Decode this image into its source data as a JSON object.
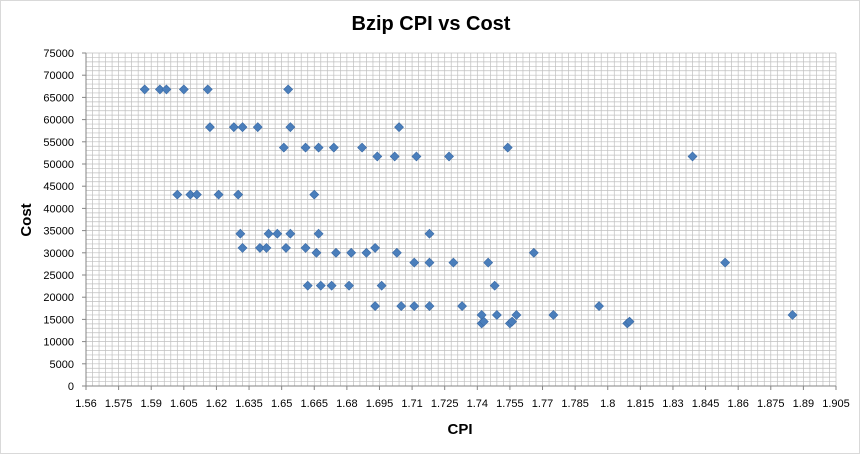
{
  "chart_data": {
    "type": "scatter",
    "title": "Bzip CPI vs Cost",
    "xlabel": "CPI",
    "ylabel": "Cost",
    "xlim": [
      1.56,
      1.905
    ],
    "ylim": [
      0,
      75000
    ],
    "x_ticks": [
      "1.56",
      "1.575",
      "1.59",
      "1.605",
      "1.62",
      "1.635",
      "1.65",
      "1.665",
      "1.68",
      "1.695",
      "1.71",
      "1.725",
      "1.74",
      "1.755",
      "1.77",
      "1.785",
      "1.8",
      "1.815",
      "1.83",
      "1.845",
      "1.86",
      "1.875",
      "1.89",
      "1.905"
    ],
    "y_ticks": [
      "0",
      "5000",
      "10000",
      "15000",
      "20000",
      "25000",
      "30000",
      "35000",
      "40000",
      "45000",
      "50000",
      "55000",
      "60000",
      "65000",
      "70000",
      "75000"
    ],
    "grid": true,
    "marker_color": "#4a7ebb",
    "points": [
      {
        "x": 1.587,
        "y": 66800
      },
      {
        "x": 1.594,
        "y": 66800
      },
      {
        "x": 1.597,
        "y": 66800
      },
      {
        "x": 1.605,
        "y": 66800
      },
      {
        "x": 1.616,
        "y": 66800
      },
      {
        "x": 1.653,
        "y": 66800
      },
      {
        "x": 1.617,
        "y": 58300
      },
      {
        "x": 1.628,
        "y": 58300
      },
      {
        "x": 1.632,
        "y": 58300
      },
      {
        "x": 1.639,
        "y": 58300
      },
      {
        "x": 1.654,
        "y": 58300
      },
      {
        "x": 1.704,
        "y": 58300
      },
      {
        "x": 1.651,
        "y": 53700
      },
      {
        "x": 1.661,
        "y": 53700
      },
      {
        "x": 1.667,
        "y": 53700
      },
      {
        "x": 1.674,
        "y": 53700
      },
      {
        "x": 1.687,
        "y": 53700
      },
      {
        "x": 1.754,
        "y": 53700
      },
      {
        "x": 1.694,
        "y": 51700
      },
      {
        "x": 1.702,
        "y": 51700
      },
      {
        "x": 1.712,
        "y": 51700
      },
      {
        "x": 1.727,
        "y": 51700
      },
      {
        "x": 1.839,
        "y": 51700
      },
      {
        "x": 1.602,
        "y": 43100
      },
      {
        "x": 1.608,
        "y": 43100
      },
      {
        "x": 1.611,
        "y": 43100
      },
      {
        "x": 1.621,
        "y": 43100
      },
      {
        "x": 1.63,
        "y": 43100
      },
      {
        "x": 1.665,
        "y": 43100
      },
      {
        "x": 1.631,
        "y": 34300
      },
      {
        "x": 1.644,
        "y": 34300
      },
      {
        "x": 1.648,
        "y": 34300
      },
      {
        "x": 1.654,
        "y": 34300
      },
      {
        "x": 1.667,
        "y": 34300
      },
      {
        "x": 1.718,
        "y": 34300
      },
      {
        "x": 1.632,
        "y": 31100
      },
      {
        "x": 1.64,
        "y": 31100
      },
      {
        "x": 1.643,
        "y": 31100
      },
      {
        "x": 1.652,
        "y": 31100
      },
      {
        "x": 1.661,
        "y": 31100
      },
      {
        "x": 1.693,
        "y": 31100
      },
      {
        "x": 1.666,
        "y": 30000
      },
      {
        "x": 1.675,
        "y": 30000
      },
      {
        "x": 1.682,
        "y": 30000
      },
      {
        "x": 1.689,
        "y": 30000
      },
      {
        "x": 1.703,
        "y": 30000
      },
      {
        "x": 1.766,
        "y": 30000
      },
      {
        "x": 1.711,
        "y": 27800
      },
      {
        "x": 1.718,
        "y": 27800
      },
      {
        "x": 1.729,
        "y": 27800
      },
      {
        "x": 1.745,
        "y": 27800
      },
      {
        "x": 1.854,
        "y": 27800
      },
      {
        "x": 1.662,
        "y": 22600
      },
      {
        "x": 1.668,
        "y": 22600
      },
      {
        "x": 1.673,
        "y": 22600
      },
      {
        "x": 1.681,
        "y": 22600
      },
      {
        "x": 1.696,
        "y": 22600
      },
      {
        "x": 1.748,
        "y": 22600
      },
      {
        "x": 1.693,
        "y": 18000
      },
      {
        "x": 1.705,
        "y": 18000
      },
      {
        "x": 1.711,
        "y": 18000
      },
      {
        "x": 1.718,
        "y": 18000
      },
      {
        "x": 1.733,
        "y": 18000
      },
      {
        "x": 1.796,
        "y": 18000
      },
      {
        "x": 1.742,
        "y": 16000
      },
      {
        "x": 1.749,
        "y": 16000
      },
      {
        "x": 1.758,
        "y": 16000
      },
      {
        "x": 1.775,
        "y": 16000
      },
      {
        "x": 1.885,
        "y": 16000
      },
      {
        "x": 1.742,
        "y": 14100
      },
      {
        "x": 1.743,
        "y": 14500
      },
      {
        "x": 1.755,
        "y": 14100
      },
      {
        "x": 1.756,
        "y": 14500
      },
      {
        "x": 1.809,
        "y": 14100
      },
      {
        "x": 1.81,
        "y": 14500
      }
    ]
  }
}
